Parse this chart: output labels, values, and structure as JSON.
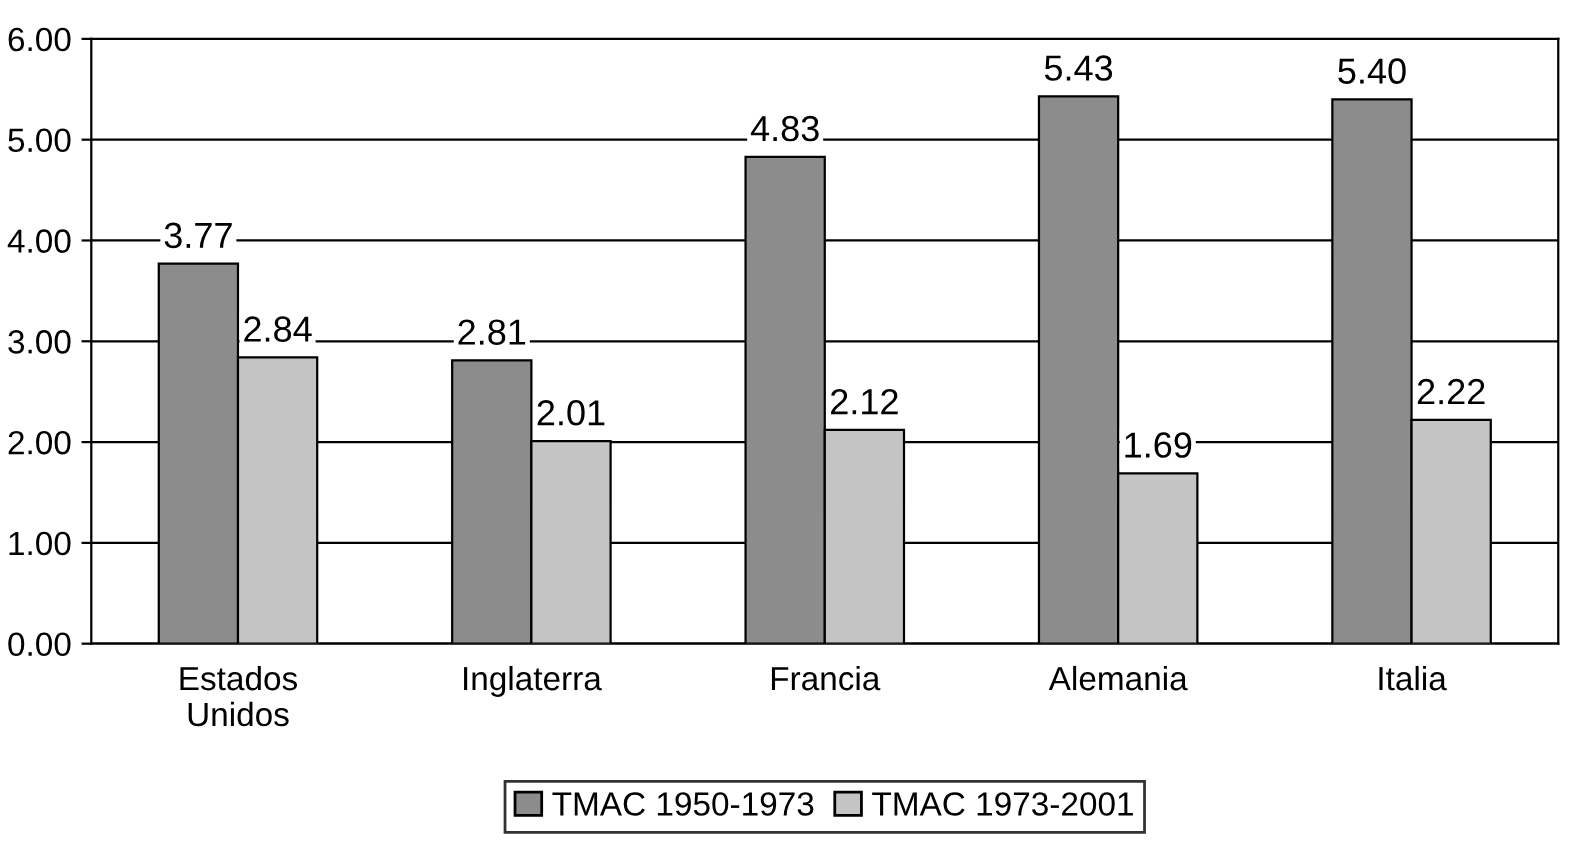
{
  "chart_data": {
    "type": "bar",
    "categories": [
      "Estados\nUnidos",
      "Inglaterra",
      "Francia",
      "Alemania",
      "Italia"
    ],
    "series": [
      {
        "name": "TMAC 1950-1973",
        "color": "#8c8c8c",
        "values": [
          3.77,
          2.81,
          4.83,
          5.43,
          5.4
        ],
        "value_labels": [
          "3.77",
          "2.81",
          "4.83",
          "5.43",
          "5.40"
        ]
      },
      {
        "name": "TMAC 1973-2001",
        "color": "#c4c4c4",
        "values": [
          2.84,
          2.01,
          2.12,
          1.69,
          2.22
        ],
        "value_labels": [
          "2.84",
          "2.01",
          "2.12",
          "1.69",
          "2.22"
        ]
      }
    ],
    "ylim": [
      0,
      6
    ],
    "yticks": [
      {
        "value": 0,
        "label": "0.00"
      },
      {
        "value": 1,
        "label": "1.00"
      },
      {
        "value": 2,
        "label": "2.00"
      },
      {
        "value": 3,
        "label": "3.00"
      },
      {
        "value": 4,
        "label": "4.00"
      },
      {
        "value": 5,
        "label": "5.00"
      },
      {
        "value": 6,
        "label": "6.00"
      }
    ],
    "grid": "y",
    "legend": "bottom"
  }
}
